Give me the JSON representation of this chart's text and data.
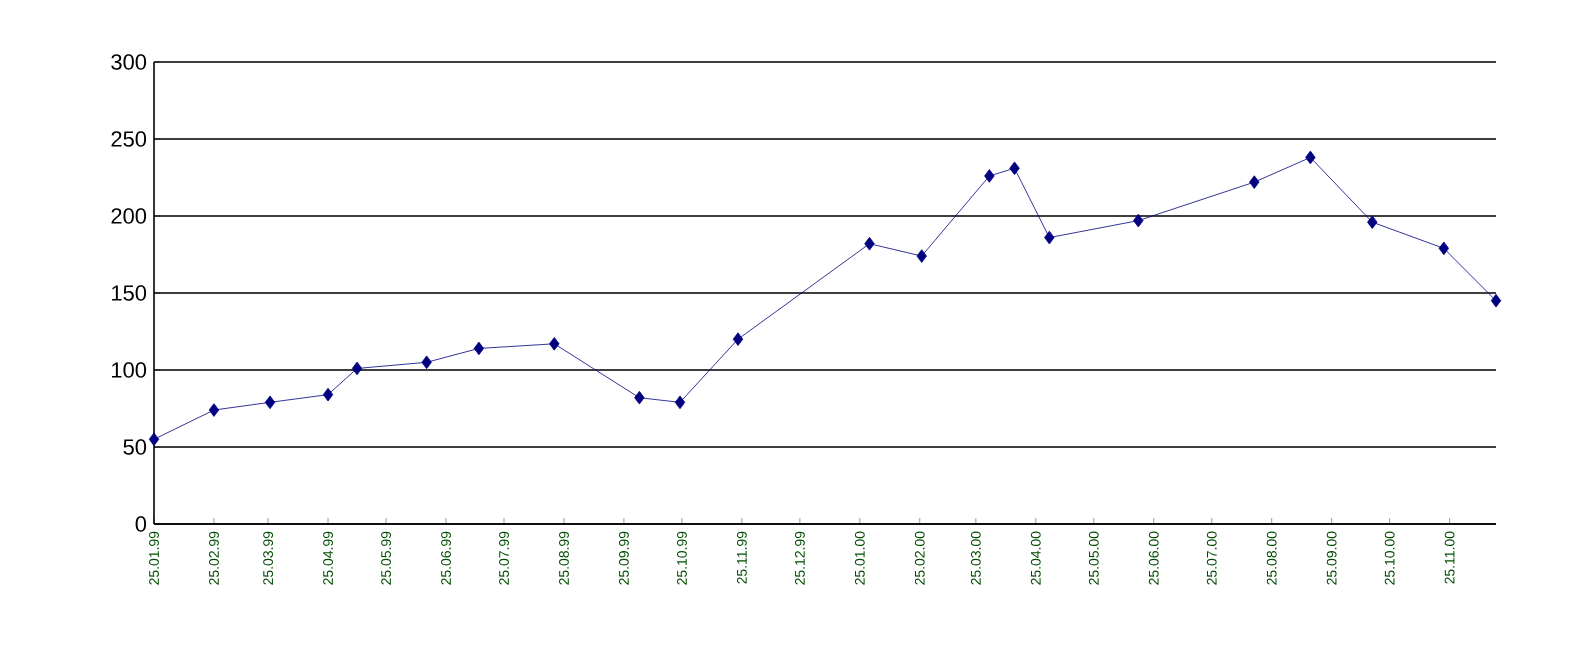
{
  "chart_data": {
    "type": "line",
    "x": [
      "1999-01-25",
      "1999-02-25",
      "1999-03-26",
      "1999-04-25",
      "1999-05-10",
      "1999-06-15",
      "1999-07-12",
      "1999-08-20",
      "1999-10-03",
      "1999-10-24",
      "1999-11-23",
      "2000-01-30",
      "2000-02-26",
      "2000-04-01",
      "2000-04-14",
      "2000-05-02",
      "2000-06-17",
      "2000-08-16",
      "2000-09-14",
      "2000-10-16",
      "2000-11-22",
      "2000-12-19"
    ],
    "series": [
      {
        "color": "#000080",
        "values": [
          55,
          74,
          79,
          84,
          101,
          105,
          114,
          117,
          82,
          79,
          120,
          182,
          174,
          226,
          231,
          186,
          197,
          222,
          238,
          196,
          179,
          145
        ]
      }
    ],
    "xlim": [
      "1999-01-25",
      "2000-12-19"
    ],
    "xticks": [
      {
        "value": "1999-01-25",
        "label": "25.01.99"
      },
      {
        "value": "1999-02-25",
        "label": "25.02.99"
      },
      {
        "value": "1999-03-25",
        "label": "25.03.99"
      },
      {
        "value": "1999-04-25",
        "label": "25.04.99"
      },
      {
        "value": "1999-05-25",
        "label": "25.05.99"
      },
      {
        "value": "1999-06-25",
        "label": "25.06.99"
      },
      {
        "value": "1999-07-25",
        "label": "25.07.99"
      },
      {
        "value": "1999-08-25",
        "label": "25.08.99"
      },
      {
        "value": "1999-09-25",
        "label": "25.09.99"
      },
      {
        "value": "1999-10-25",
        "label": "25.10.99"
      },
      {
        "value": "1999-11-25",
        "label": "25.11.99"
      },
      {
        "value": "1999-12-25",
        "label": "25.12.99"
      },
      {
        "value": "2000-01-25",
        "label": "25.01.00"
      },
      {
        "value": "2000-02-25",
        "label": "25.02.00"
      },
      {
        "value": "2000-03-25",
        "label": "25.03.00"
      },
      {
        "value": "2000-04-25",
        "label": "25.04.00"
      },
      {
        "value": "2000-05-25",
        "label": "25.05.00"
      },
      {
        "value": "2000-06-25",
        "label": "25.06.00"
      },
      {
        "value": "2000-07-25",
        "label": "25.07.00"
      },
      {
        "value": "2000-08-25",
        "label": "25.08.00"
      },
      {
        "value": "2000-09-25",
        "label": "25.09.00"
      },
      {
        "value": "2000-10-25",
        "label": "25.10.00"
      },
      {
        "value": "2000-11-25",
        "label": "25.11.00"
      }
    ],
    "ylim": [
      0,
      300
    ],
    "yticks": [
      0,
      50,
      100,
      150,
      200,
      250,
      300
    ],
    "grid": "y",
    "marker": "diamond",
    "line_style": "solid"
  }
}
